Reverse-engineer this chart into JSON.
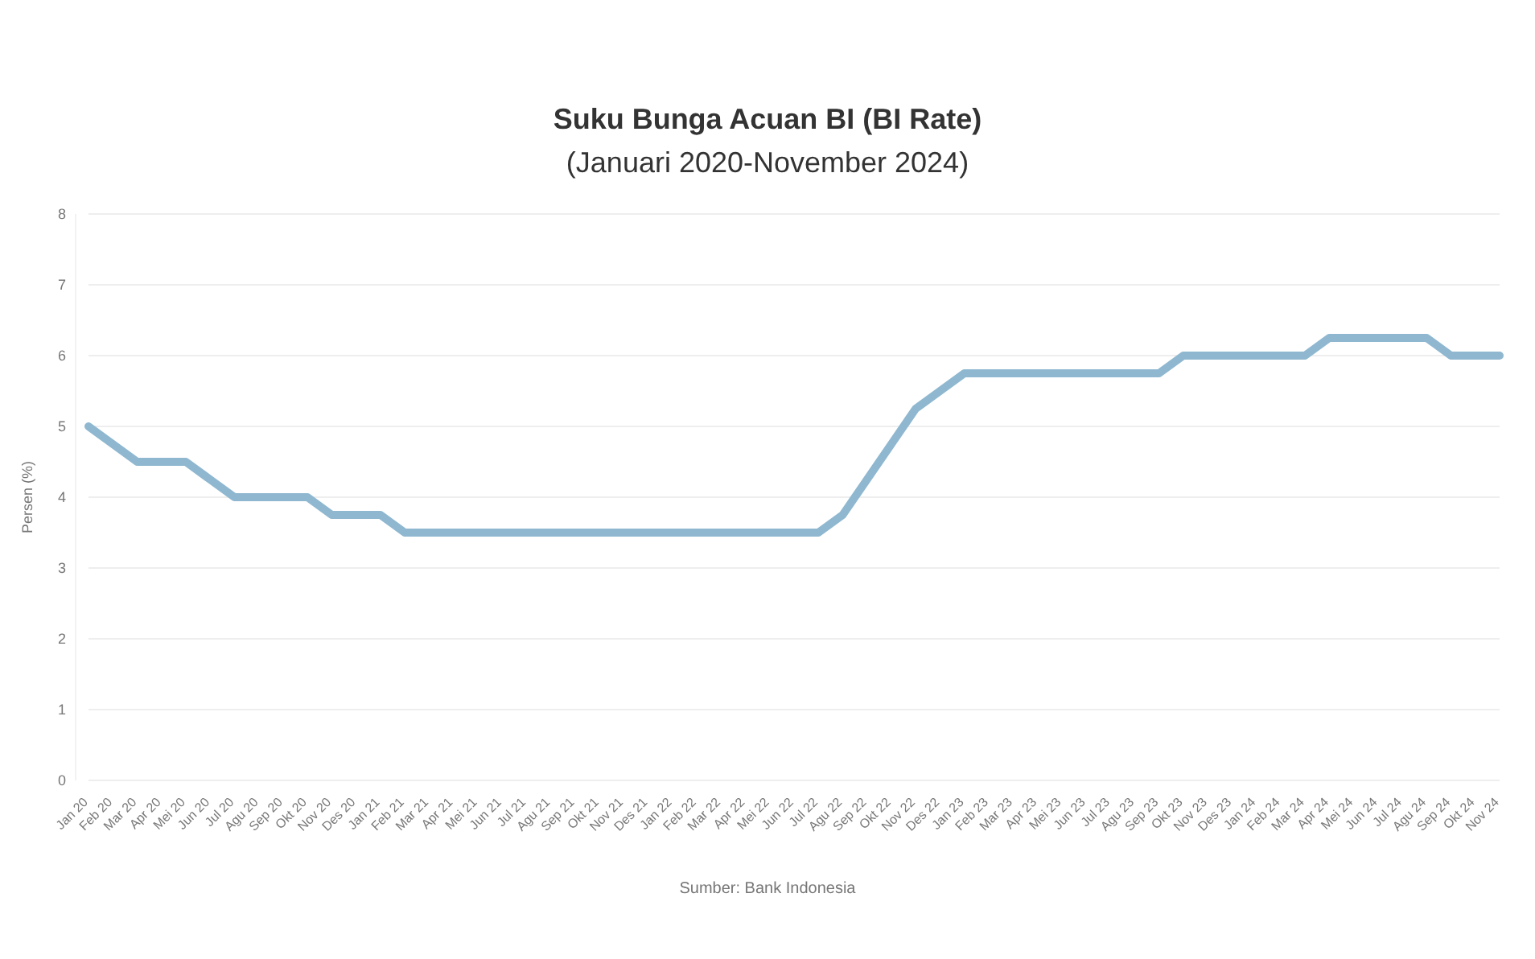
{
  "chart_data": {
    "type": "line",
    "title": "Suku Bunga Acuan BI (BI Rate)",
    "subtitle": "(Januari 2020-November 2024)",
    "ylabel": "Persen (%)",
    "annotations": [
      "Sumber: Bank Indonesia"
    ],
    "categories": [
      "Jan 20",
      "Feb 20",
      "Mar 20",
      "Apr 20",
      "Mei 20",
      "Jun 20",
      "Jul 20",
      "Agu 20",
      "Sep 20",
      "Okt 20",
      "Nov 20",
      "Des 20",
      "Jan 21",
      "Feb 21",
      "Mar 21",
      "Apr 21",
      "Mei 21",
      "Jun 21",
      "Jul 21",
      "Agu 21",
      "Sep 21",
      "Okt 21",
      "Nov 21",
      "Des 21",
      "Jan 22",
      "Feb 22",
      "Mar 22",
      "Apr 22",
      "Mei 22",
      "Jun 22",
      "Jul 22",
      "Agu 22",
      "Sep 22",
      "Okt 22",
      "Nov 22",
      "Des 22",
      "Jan 23",
      "Feb 23",
      "Mar 23",
      "Apr 23",
      "Mei 23",
      "Jun 23",
      "Jul 23",
      "Agu 23",
      "Sep 23",
      "Okt 23",
      "Nov 23",
      "Des 23",
      "Jan 24",
      "Feb 24",
      "Mar 24",
      "Apr 24",
      "Mei 24",
      "Jun 24",
      "Jul 24",
      "Agu 24",
      "Sep 24",
      "Okt 24",
      "Nov 24"
    ],
    "series": [
      {
        "color": "#8fb8d0",
        "values": [
          5.0,
          4.75,
          4.5,
          4.5,
          4.5,
          4.25,
          4.0,
          4.0,
          4.0,
          4.0,
          3.75,
          3.75,
          3.75,
          3.5,
          3.5,
          3.5,
          3.5,
          3.5,
          3.5,
          3.5,
          3.5,
          3.5,
          3.5,
          3.5,
          3.5,
          3.5,
          3.5,
          3.5,
          3.5,
          3.5,
          3.5,
          3.75,
          4.25,
          4.75,
          5.25,
          5.5,
          5.75,
          5.75,
          5.75,
          5.75,
          5.75,
          5.75,
          5.75,
          5.75,
          5.75,
          6.0,
          6.0,
          6.0,
          6.0,
          6.0,
          6.0,
          6.25,
          6.25,
          6.25,
          6.25,
          6.25,
          6.0,
          6.0,
          6.0
        ]
      }
    ],
    "ylim": [
      0,
      8
    ],
    "yticks": [
      0,
      1,
      2,
      3,
      4,
      5,
      6,
      7,
      8
    ],
    "grid": "y"
  }
}
